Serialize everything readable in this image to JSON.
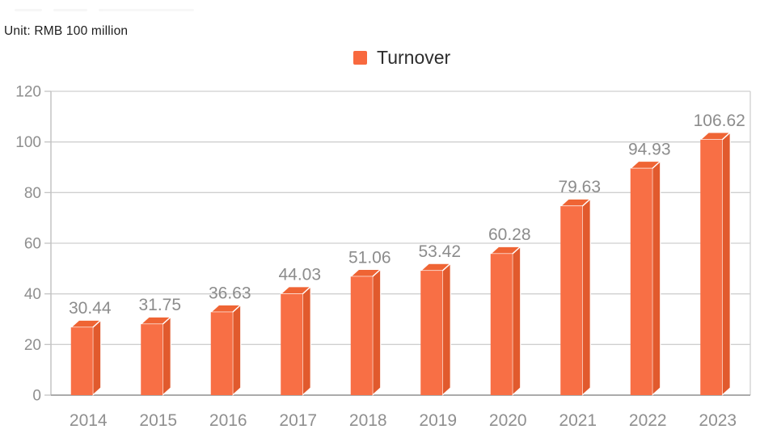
{
  "unit_label": "Unit: RMB 100 million",
  "legend": {
    "items": [
      {
        "label": "Turnover",
        "color": "#f8693f"
      }
    ]
  },
  "chart_data": {
    "type": "bar",
    "title": "",
    "subtitle": "Unit: RMB 100 million",
    "legend_entries": [
      "Turnover"
    ],
    "legend_position": "top-center",
    "categories": [
      "2014",
      "2015",
      "2016",
      "2017",
      "2018",
      "2019",
      "2020",
      "2021",
      "2022",
      "2023"
    ],
    "series": [
      {
        "name": "Turnover",
        "values": [
          30.44,
          31.75,
          36.63,
          44.03,
          51.06,
          53.42,
          60.28,
          79.63,
          94.93,
          106.62
        ]
      }
    ],
    "data_labels": [
      "30.44",
      "31.75",
      "36.63",
      "44.03",
      "51.06",
      "53.42",
      "60.28",
      "79.63",
      "94.93",
      "106.62"
    ],
    "xlabel": "",
    "ylabel": "",
    "ylim": [
      0,
      120
    ],
    "y_ticks": [
      0,
      20,
      40,
      60,
      80,
      100,
      120
    ],
    "y_tick_labels": [
      "0",
      "20",
      "40",
      "60",
      "80",
      "100",
      "120"
    ],
    "grid": true,
    "bar_style": "3d",
    "colors": {
      "bar_front": "#f86f45",
      "bar_top": "#ef6434",
      "bar_side": "#e15a2d",
      "bar_edge": "#ffffff",
      "gridline": "#cfcfcf",
      "axis_line": "#c3c3c3",
      "bottom_axis": "#ababab",
      "axis_text": "#8f8f8f",
      "value_text": "#8c8c8c"
    }
  }
}
